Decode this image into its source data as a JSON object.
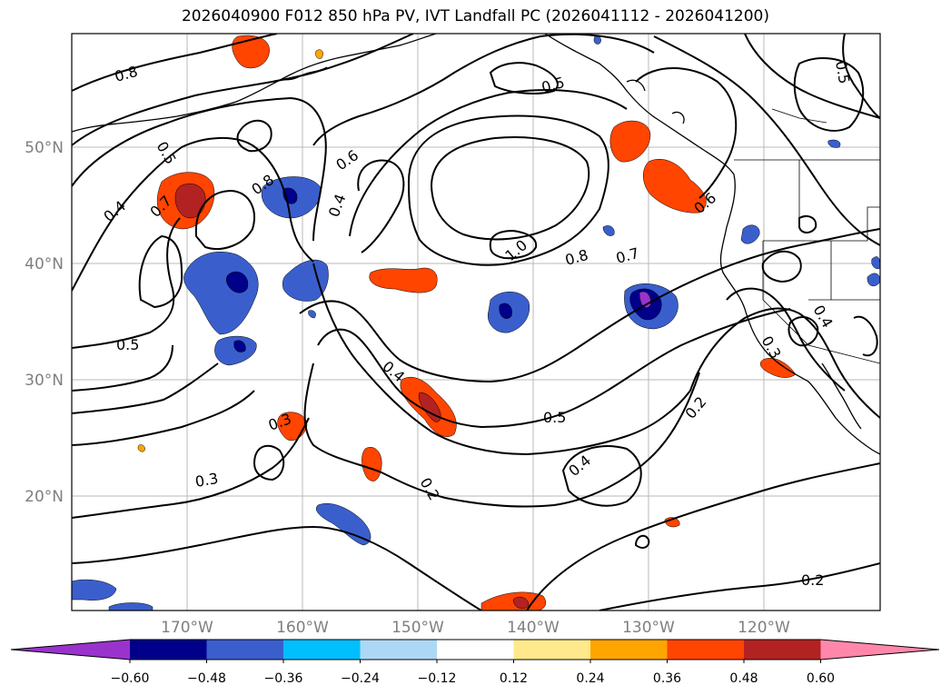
{
  "title": "2026040900 F012 850 hPa PV, IVT Landfall PC (2026041112 - 2026041200)",
  "lat_labels": [
    "50°N",
    "40°N",
    "30°N",
    "20°N"
  ],
  "lon_labels": [
    "170°W",
    "160°W",
    "150°W",
    "140°W",
    "130°W",
    "120°W"
  ],
  "colorbar": {
    "ticks": [
      "−0.60",
      "−0.48",
      "−0.36",
      "−0.24",
      "−0.12",
      "0.12",
      "0.24",
      "0.36",
      "0.48",
      "0.60"
    ],
    "colors": [
      "#9933cc",
      "#00008b",
      "#3a5fcd",
      "#00bfff",
      "#add8f5",
      "#ffffff",
      "#ffe98c",
      "#ffa500",
      "#ff4500",
      "#b22222",
      "#ff88aa"
    ]
  },
  "contour_labels": {
    "c1": "0.8",
    "c2": "0.5",
    "c3": "0.4",
    "c4": "0.7",
    "c5": "0.8",
    "c6": "0.6",
    "c7": "0.4",
    "c8": "0.5",
    "c9": "0.5",
    "c10": "1.0",
    "c11": "0.8",
    "c12": "0.7",
    "c13": "0.6",
    "c14": "0.5",
    "c15": "0.4",
    "c16": "0.3",
    "c17": "0.5",
    "c18": "0.4",
    "c19": "0.2",
    "c20": "0.3",
    "c21": "0.2",
    "c22": "0.2",
    "c23": "0.4",
    "c24": "0.3"
  }
}
